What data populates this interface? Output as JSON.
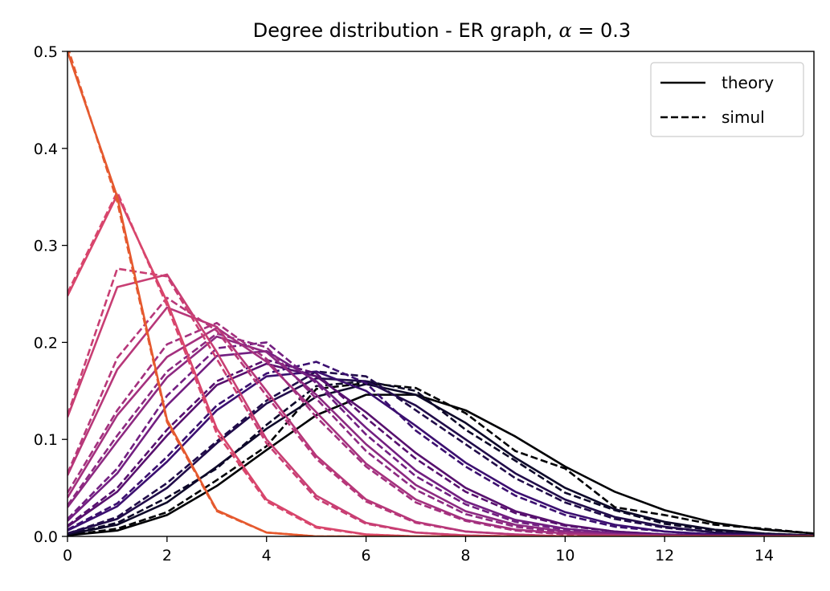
{
  "chart_data": {
    "type": "line",
    "title_prefix": "Degree distribution - ER graph, ",
    "title_symbol": "α",
    "title_suffix": " = 0.3",
    "xlim": [
      0,
      15
    ],
    "ylim": [
      0,
      0.5
    ],
    "xticks": [
      0,
      2,
      4,
      6,
      8,
      10,
      12,
      14
    ],
    "yticks": [
      0.0,
      0.1,
      0.2,
      0.3,
      0.4,
      0.5
    ],
    "xtick_labels": [
      "0",
      "2",
      "4",
      "6",
      "8",
      "10",
      "12",
      "14"
    ],
    "ytick_labels": [
      "0.0",
      "0.1",
      "0.2",
      "0.3",
      "0.4",
      "0.5"
    ],
    "grid": false,
    "legend_position": "top-right",
    "legend": [
      {
        "label": "theory",
        "style": "solid"
      },
      {
        "label": "simul",
        "style": "dashed"
      }
    ],
    "x": [
      0,
      1,
      2,
      3,
      4,
      5,
      6,
      7,
      8,
      9,
      10,
      11,
      12,
      13,
      14,
      15
    ],
    "series": [
      {
        "color": "#000004",
        "theory": [
          0.001,
          0.006,
          0.022,
          0.052,
          0.089,
          0.125,
          0.146,
          0.146,
          0.13,
          0.103,
          0.072,
          0.046,
          0.027,
          0.014,
          0.007,
          0.003
        ],
        "simul": [
          0.001,
          0.008,
          0.025,
          0.058,
          0.093,
          0.152,
          0.158,
          0.153,
          0.127,
          0.088,
          0.07,
          0.03,
          0.022,
          0.012,
          0.008,
          0.003
        ]
      },
      {
        "color": "#0d0829",
        "theory": [
          0.002,
          0.012,
          0.035,
          0.072,
          0.111,
          0.144,
          0.157,
          0.146,
          0.117,
          0.081,
          0.05,
          0.028,
          0.015,
          0.007,
          0.003,
          0.001
        ],
        "simul": [
          0.002,
          0.014,
          0.04,
          0.07,
          0.115,
          0.155,
          0.16,
          0.15,
          0.11,
          0.078,
          0.045,
          0.027,
          0.013,
          0.006,
          0.003,
          0.001
        ]
      },
      {
        "color": "#210c4a",
        "theory": [
          0.003,
          0.018,
          0.05,
          0.096,
          0.137,
          0.163,
          0.16,
          0.135,
          0.1,
          0.065,
          0.038,
          0.02,
          0.01,
          0.004,
          0.002,
          0.001
        ],
        "simul": [
          0.003,
          0.02,
          0.055,
          0.098,
          0.14,
          0.17,
          0.165,
          0.13,
          0.095,
          0.06,
          0.035,
          0.018,
          0.009,
          0.004,
          0.002,
          0.001
        ]
      },
      {
        "color": "#3b0f70",
        "theory": [
          0.006,
          0.031,
          0.077,
          0.13,
          0.165,
          0.17,
          0.15,
          0.114,
          0.076,
          0.046,
          0.025,
          0.012,
          0.005,
          0.002,
          0.001,
          0.0
        ],
        "simul": [
          0.007,
          0.034,
          0.082,
          0.135,
          0.168,
          0.18,
          0.158,
          0.109,
          0.072,
          0.042,
          0.022,
          0.01,
          0.005,
          0.002,
          0.001,
          0.0
        ]
      },
      {
        "color": "#57106e",
        "theory": [
          0.01,
          0.046,
          0.104,
          0.156,
          0.178,
          0.165,
          0.128,
          0.086,
          0.05,
          0.026,
          0.012,
          0.005,
          0.002,
          0.001,
          0.0,
          0.0
        ],
        "simul": [
          0.011,
          0.05,
          0.11,
          0.16,
          0.182,
          0.168,
          0.122,
          0.08,
          0.046,
          0.024,
          0.011,
          0.005,
          0.002,
          0.001,
          0.0,
          0.0
        ]
      },
      {
        "color": "#721f81",
        "theory": [
          0.016,
          0.065,
          0.135,
          0.186,
          0.191,
          0.16,
          0.112,
          0.068,
          0.036,
          0.017,
          0.008,
          0.003,
          0.001,
          0.0,
          0.0,
          0.0
        ],
        "simul": [
          0.018,
          0.07,
          0.145,
          0.194,
          0.2,
          0.158,
          0.105,
          0.062,
          0.033,
          0.015,
          0.007,
          0.003,
          0.001,
          0.0,
          0.0,
          0.0
        ]
      },
      {
        "color": "#8c2981",
        "theory": [
          0.03,
          0.098,
          0.164,
          0.206,
          0.19,
          0.146,
          0.095,
          0.053,
          0.026,
          0.012,
          0.005,
          0.002,
          0.001,
          0.0,
          0.0,
          0.0
        ],
        "simul": [
          0.032,
          0.104,
          0.17,
          0.209,
          0.195,
          0.142,
          0.088,
          0.048,
          0.023,
          0.01,
          0.004,
          0.002,
          0.001,
          0.0,
          0.0,
          0.0
        ]
      },
      {
        "color": "#a3307e",
        "theory": [
          0.04,
          0.125,
          0.185,
          0.215,
          0.18,
          0.128,
          0.075,
          0.038,
          0.017,
          0.007,
          0.003,
          0.001,
          0.0,
          0.0,
          0.0,
          0.0
        ],
        "simul": [
          0.045,
          0.13,
          0.198,
          0.22,
          0.183,
          0.123,
          0.072,
          0.035,
          0.016,
          0.006,
          0.002,
          0.001,
          0.0,
          0.0,
          0.0,
          0.0
        ]
      },
      {
        "color": "#b73779",
        "theory": [
          0.063,
          0.172,
          0.236,
          0.216,
          0.15,
          0.083,
          0.038,
          0.015,
          0.005,
          0.002,
          0.0,
          0.0,
          0.0,
          0.0,
          0.0,
          0.0
        ],
        "simul": [
          0.065,
          0.184,
          0.246,
          0.212,
          0.145,
          0.08,
          0.036,
          0.014,
          0.005,
          0.002,
          0.0,
          0.0,
          0.0,
          0.0,
          0.0,
          0.0
        ]
      },
      {
        "color": "#c83e73",
        "theory": [
          0.123,
          0.257,
          0.27,
          0.19,
          0.1,
          0.042,
          0.014,
          0.004,
          0.001,
          0.0,
          0.0,
          0.0,
          0.0,
          0.0,
          0.0,
          0.0
        ],
        "simul": [
          0.125,
          0.276,
          0.268,
          0.183,
          0.096,
          0.039,
          0.013,
          0.004,
          0.001,
          0.0,
          0.0,
          0.0,
          0.0,
          0.0,
          0.0,
          0.0
        ]
      },
      {
        "color": "#d8456c",
        "theory": [
          0.248,
          0.352,
          0.242,
          0.111,
          0.038,
          0.01,
          0.002,
          0.0,
          0.0,
          0.0,
          0.0,
          0.0,
          0.0,
          0.0,
          0.0,
          0.0
        ],
        "simul": [
          0.251,
          0.355,
          0.238,
          0.106,
          0.036,
          0.009,
          0.002,
          0.0,
          0.0,
          0.0,
          0.0,
          0.0,
          0.0,
          0.0,
          0.0,
          0.0
        ]
      },
      {
        "color": "#e5592e",
        "theory": [
          0.5,
          0.35,
          0.12,
          0.027,
          0.004,
          0.0,
          0.0,
          0.0,
          0.0,
          0.0,
          0.0,
          0.0,
          0.0,
          0.0,
          0.0,
          0.0
        ],
        "simul": [
          0.505,
          0.345,
          0.118,
          0.026,
          0.004,
          0.0,
          0.0,
          0.0,
          0.0,
          0.0,
          0.0,
          0.0,
          0.0,
          0.0,
          0.0,
          0.0
        ]
      }
    ]
  }
}
